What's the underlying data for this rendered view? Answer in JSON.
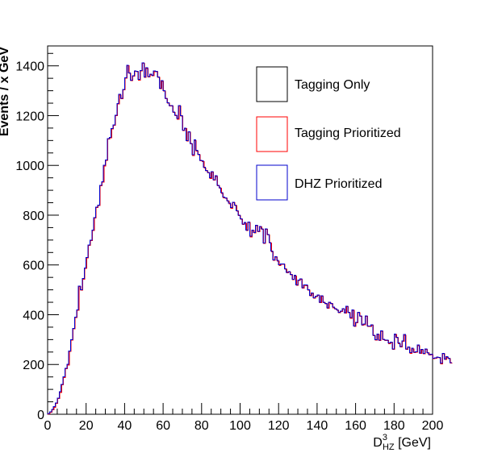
{
  "chart_data": {
    "type": "histogram-step",
    "xlabel": "D^{3}_{HZ} [GeV]",
    "xlabel_parts": {
      "main": "D",
      "sup": "3",
      "sub": "HZ",
      "unit": " [GeV]"
    },
    "ylabel": "Events / x GeV",
    "xlim": [
      0,
      200
    ],
    "ylim": [
      0,
      1480
    ],
    "x_ticks": [
      0,
      20,
      40,
      60,
      80,
      100,
      120,
      140,
      160,
      180,
      200
    ],
    "y_ticks": [
      0,
      200,
      400,
      600,
      800,
      1000,
      1200,
      1400
    ],
    "x_tick_labels": [
      "0",
      "20",
      "40",
      "60",
      "80",
      "100",
      "120",
      "140",
      "160",
      "180",
      "200"
    ],
    "y_tick_labels": [
      "0",
      "200",
      "400",
      "600",
      "800",
      "1000",
      "1200",
      "1400"
    ],
    "grid": false,
    "legend_position": "top-right",
    "bin_width": 1,
    "series": [
      {
        "name": "Tagging Only",
        "color": "#000000",
        "values": [
          3,
          10,
          19,
          30,
          45,
          65,
          90,
          120,
          150,
          185,
          200,
          255,
          300,
          345,
          390,
          420,
          515,
          500,
          545,
          588,
          630,
          680,
          700,
          740,
          790,
          832,
          840,
          920,
          935,
          1000,
          1022,
          1108,
          1112,
          1148,
          1163,
          1202,
          1248,
          1285,
          1270,
          1305,
          1352,
          1402,
          1372,
          1342,
          1360,
          1380,
          1378,
          1345,
          1382,
          1412,
          1355,
          1392,
          1357,
          1366,
          1362,
          1379,
          1378,
          1355,
          1310,
          1340,
          1300,
          1270,
          1252,
          1240,
          1240,
          1215,
          1202,
          1188,
          1240,
          1200,
          1142,
          1150,
          1100,
          1135,
          1088,
          1042,
          1102,
          1060,
          1045,
          1020,
          1018,
          992,
          980,
          972,
          950,
          975,
          942,
          958,
          920,
          910,
          890,
          872,
          870,
          858,
          848,
          830,
          852,
          840,
          818,
          800,
          785,
          765,
          770,
          740,
          772,
          715,
          740,
          730,
          760,
          735,
          755,
          745,
          688,
          745,
          722,
          690,
          655,
          620,
          633,
          618,
          600,
          604,
          604,
          585,
          570,
          574,
          562,
          542,
          558,
          520,
          540,
          544,
          508,
          520,
          519,
          500,
          478,
          488,
          468,
          474,
          480,
          450,
          476,
          450,
          445,
          428,
          450,
          446,
          430,
          425,
          420,
          410,
          415,
          424,
          408,
          434,
          410,
          388,
          420,
          355,
          370,
          410,
          395,
          360,
          362,
          395,
          355,
          355,
          360,
          318,
          300,
          322,
          298,
          335,
          301,
          298,
          298,
          286,
          290,
          262,
          322,
          310,
          286,
          272,
          295,
          320,
          262,
          270,
          247,
          265,
          249,
          251,
          278,
          246,
          261,
          245,
          262,
          248,
          240,
          241,
          225,
          227,
          230,
          228,
          205,
          245,
          222,
          231,
          225,
          208
        ]
      },
      {
        "name": "Tagging Prioritized",
        "color": "#ff0000",
        "values": [
          3,
          10,
          19,
          30,
          45,
          65,
          90,
          120,
          150,
          185,
          200,
          255,
          300,
          345,
          390,
          420,
          515,
          500,
          545,
          588,
          630,
          680,
          700,
          740,
          790,
          832,
          840,
          920,
          935,
          1000,
          1022,
          1108,
          1112,
          1148,
          1163,
          1202,
          1248,
          1285,
          1270,
          1305,
          1352,
          1402,
          1372,
          1342,
          1360,
          1380,
          1378,
          1345,
          1382,
          1412,
          1355,
          1392,
          1357,
          1366,
          1362,
          1379,
          1378,
          1355,
          1310,
          1340,
          1300,
          1270,
          1252,
          1240,
          1240,
          1215,
          1202,
          1188,
          1240,
          1200,
          1142,
          1150,
          1100,
          1135,
          1088,
          1042,
          1102,
          1060,
          1045,
          1020,
          1018,
          992,
          980,
          972,
          950,
          975,
          942,
          958,
          920,
          910,
          890,
          872,
          870,
          858,
          848,
          830,
          852,
          840,
          818,
          800,
          785,
          765,
          770,
          740,
          772,
          715,
          740,
          730,
          760,
          735,
          755,
          745,
          688,
          745,
          722,
          690,
          655,
          620,
          633,
          618,
          600,
          604,
          604,
          585,
          570,
          574,
          562,
          542,
          558,
          520,
          540,
          544,
          508,
          520,
          519,
          500,
          478,
          488,
          468,
          474,
          480,
          450,
          476,
          450,
          445,
          428,
          450,
          446,
          430,
          425,
          420,
          410,
          415,
          424,
          408,
          434,
          410,
          388,
          420,
          355,
          370,
          410,
          395,
          360,
          362,
          395,
          355,
          355,
          360,
          318,
          300,
          322,
          298,
          335,
          301,
          298,
          298,
          286,
          290,
          262,
          322,
          310,
          286,
          272,
          295,
          320,
          262,
          270,
          247,
          265,
          249,
          251,
          278,
          246,
          261,
          245,
          262,
          248,
          240,
          241,
          225,
          227,
          230,
          228,
          205,
          245,
          222,
          231,
          225,
          208
        ]
      },
      {
        "name": "DHZ Prioritized",
        "color": "#0000cc",
        "values": [
          3,
          10,
          19,
          30,
          45,
          65,
          90,
          120,
          150,
          185,
          200,
          255,
          300,
          345,
          390,
          420,
          515,
          500,
          545,
          588,
          630,
          680,
          700,
          740,
          790,
          832,
          840,
          920,
          935,
          1000,
          1022,
          1108,
          1112,
          1148,
          1163,
          1202,
          1248,
          1285,
          1270,
          1305,
          1352,
          1402,
          1372,
          1342,
          1360,
          1380,
          1378,
          1345,
          1382,
          1412,
          1355,
          1392,
          1357,
          1366,
          1362,
          1379,
          1378,
          1355,
          1310,
          1340,
          1300,
          1270,
          1252,
          1240,
          1240,
          1215,
          1202,
          1188,
          1240,
          1200,
          1142,
          1150,
          1100,
          1135,
          1088,
          1042,
          1102,
          1060,
          1045,
          1020,
          1018,
          992,
          980,
          972,
          950,
          975,
          942,
          958,
          920,
          910,
          890,
          872,
          870,
          858,
          848,
          830,
          852,
          840,
          818,
          800,
          785,
          765,
          770,
          740,
          772,
          715,
          740,
          730,
          760,
          735,
          755,
          745,
          688,
          745,
          722,
          690,
          655,
          620,
          633,
          618,
          600,
          604,
          604,
          585,
          570,
          574,
          562,
          542,
          558,
          520,
          540,
          544,
          508,
          520,
          519,
          500,
          478,
          488,
          468,
          474,
          480,
          450,
          476,
          450,
          445,
          428,
          450,
          446,
          430,
          425,
          420,
          410,
          415,
          424,
          408,
          434,
          410,
          388,
          420,
          355,
          370,
          410,
          395,
          360,
          362,
          395,
          355,
          355,
          360,
          318,
          300,
          322,
          298,
          335,
          301,
          298,
          298,
          286,
          290,
          262,
          322,
          310,
          286,
          272,
          295,
          320,
          262,
          270,
          247,
          265,
          249,
          251,
          278,
          246,
          261,
          245,
          262,
          248,
          240,
          241,
          225,
          227,
          230,
          228,
          205,
          245,
          222,
          231,
          225,
          208
        ]
      }
    ]
  }
}
